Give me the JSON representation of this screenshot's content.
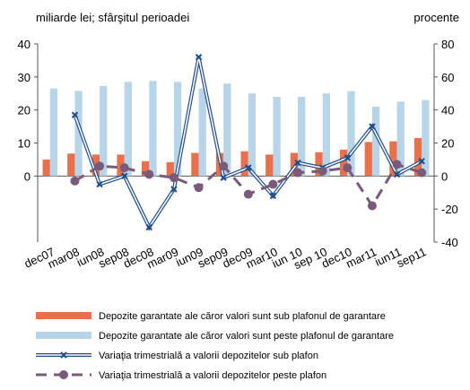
{
  "chart_data": {
    "type": "bar-line",
    "y_label": "miliarde lei; sfârşitul perioadei",
    "y2_label": "procente",
    "categories": [
      "dec07",
      "mar08",
      "iun08",
      "sep08",
      "dec08",
      "mar09",
      "iun09",
      "sep09",
      "dec09",
      "mar10",
      "iun 10",
      "sep 10",
      "dec10",
      "mar11",
      "iun11",
      "sep11"
    ],
    "ylim": [
      -20,
      40
    ],
    "yticks": [
      0,
      10,
      20,
      30,
      40
    ],
    "y2lim": [
      -40,
      80
    ],
    "y2ticks": [
      -40,
      -20,
      0,
      20,
      40,
      60,
      80
    ],
    "series": [
      {
        "name": "Depozite garantate ale căror valori sunt sub plafonul de garantare",
        "kind": "bar",
        "color": "#e8704a",
        "values": [
          5,
          6.8,
          6.5,
          6.5,
          4.5,
          4.2,
          7,
          7,
          7.5,
          6.5,
          7,
          7.2,
          8,
          10.3,
          10.5,
          11.5
        ]
      },
      {
        "name": "Depozite garantate ale căror valori sunt peste plafonul de garantare",
        "kind": "bar",
        "color": "#b8d4e8",
        "values": [
          26.5,
          25.8,
          27.3,
          28.5,
          28.8,
          28.5,
          26.5,
          28,
          25,
          24,
          24,
          25,
          25.7,
          21,
          22.5,
          23
        ]
      },
      {
        "name": "Variaţia trimestrială a valorii depozitelor sub plafon",
        "kind": "line",
        "axis": "y2",
        "color": "#1f4e8c",
        "values": [
          null,
          37,
          -5,
          0,
          -31,
          -8,
          72,
          -1,
          5,
          -12,
          8,
          5,
          11,
          30,
          1,
          9
        ]
      },
      {
        "name": "Variaţia trimestrială a valorii depozitelor peste plafon",
        "kind": "dashed",
        "axis": "y2",
        "color": "#7a5a7a",
        "values": [
          null,
          -3,
          6,
          5,
          1,
          -1,
          -7,
          6,
          -11,
          -5,
          2,
          3,
          5,
          -18,
          7,
          2
        ]
      }
    ]
  }
}
